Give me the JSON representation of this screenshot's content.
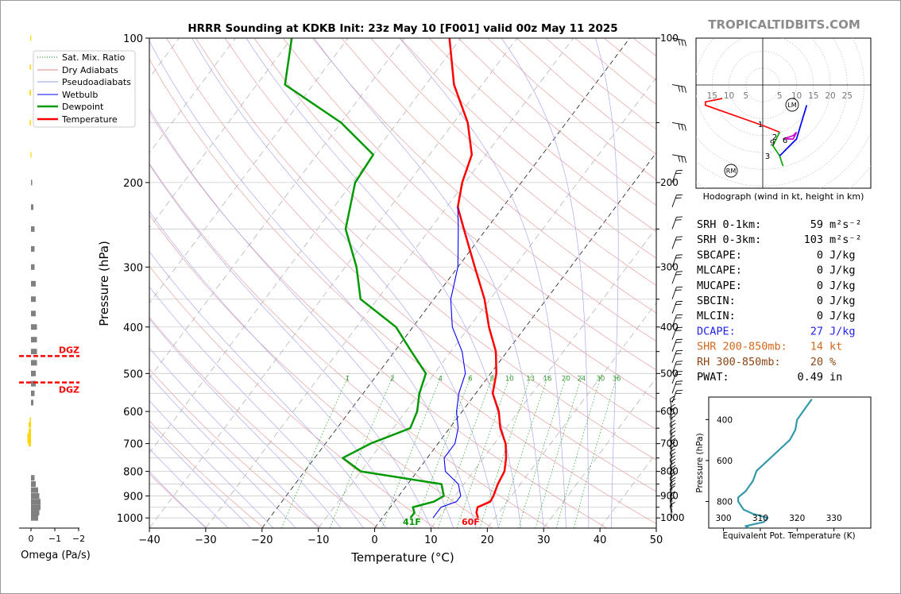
{
  "site": "TROPICALTIDBITS.COM",
  "chart_data": [
    {
      "type": "skew-t",
      "title": "HRRR Sounding at KDKB Init: 23z May 10 [F001] valid 00z May 11 2025",
      "xlabel": "Temperature (°C)",
      "ylabel": "Pressure (hPa)",
      "xlim": [
        -40,
        50
      ],
      "ylim": [
        1050,
        100
      ],
      "x_ticks": [
        "−40",
        "−30",
        "−20",
        "−10",
        "0",
        "10",
        "20",
        "30",
        "40",
        "50"
      ],
      "y_ticks": [
        "100",
        "200",
        "300",
        "400",
        "500",
        "600",
        "700",
        "800",
        "900",
        "1000"
      ],
      "legend": [
        "Sat. Mix. Ratio",
        "Dry Adiabats",
        "Pseudoadiabats",
        "Wetbulb",
        "Dewpoint",
        "Temperature"
      ],
      "legend_placement": "top-left",
      "mixing_ratio_labels": [
        "1",
        "2",
        "4",
        "6",
        "8",
        "10",
        "13",
        "16",
        "20",
        "24",
        "30",
        "36"
      ],
      "surface_labels": {
        "dewpoint": "41F",
        "temperature": "60F"
      },
      "series": [
        {
          "name": "Temperature",
          "color": "#ff0000",
          "points": [
            [
              1000,
              17
            ],
            [
              975,
              16
            ],
            [
              950,
              15.5
            ],
            [
              925,
              17
            ],
            [
              900,
              16.8
            ],
            [
              850,
              16
            ],
            [
              800,
              15.5
            ],
            [
              750,
              14
            ],
            [
              700,
              12
            ],
            [
              650,
              9
            ],
            [
              600,
              6.5
            ],
            [
              550,
              3
            ],
            [
              500,
              1
            ],
            [
              450,
              -2
            ],
            [
              400,
              -6.5
            ],
            [
              350,
              -11
            ],
            [
              300,
              -17
            ],
            [
              250,
              -24
            ],
            [
              225,
              -28
            ],
            [
              200,
              -30.5
            ],
            [
              175,
              -32.5
            ],
            [
              150,
              -37.5
            ],
            [
              125,
              -45
            ],
            [
              100,
              -52
            ]
          ]
        },
        {
          "name": "Dewpoint",
          "color": "#009900",
          "points": [
            [
              1000,
              5
            ],
            [
              975,
              5
            ],
            [
              950,
              4
            ],
            [
              925,
              7
            ],
            [
              900,
              8
            ],
            [
              850,
              6
            ],
            [
              800,
              -10
            ],
            [
              750,
              -15
            ],
            [
              700,
              -12
            ],
            [
              650,
              -7
            ],
            [
              600,
              -8
            ],
            [
              550,
              -10
            ],
            [
              500,
              -11.5
            ],
            [
              450,
              -17
            ],
            [
              400,
              -23
            ],
            [
              350,
              -33
            ],
            [
              300,
              -38
            ],
            [
              250,
              -45
            ],
            [
              200,
              -49.5
            ],
            [
              175,
              -50
            ],
            [
              150,
              -60
            ],
            [
              125,
              -75
            ],
            [
              100,
              -80
            ]
          ]
        },
        {
          "name": "Wetbulb",
          "color": "#0000ff",
          "points": [
            [
              1000,
              9
            ],
            [
              975,
              9
            ],
            [
              950,
              9
            ],
            [
              925,
              11
            ],
            [
              900,
              11
            ],
            [
              850,
              9
            ],
            [
              800,
              5
            ],
            [
              750,
              3
            ],
            [
              700,
              3
            ],
            [
              650,
              1.5
            ],
            [
              600,
              -1
            ],
            [
              550,
              -3
            ],
            [
              500,
              -4.5
            ],
            [
              450,
              -8
            ],
            [
              400,
              -13
            ],
            [
              350,
              -17
            ],
            [
              300,
              -20
            ],
            [
              250,
              -25
            ],
            [
              225,
              -28
            ]
          ]
        }
      ],
      "dgz": {
        "label": "DGZ",
        "pressures_hPa": [
          460,
          522
        ]
      },
      "omega": {
        "xlabel": "Omega (Pa/s)",
        "ticks": [
          "0",
          "−1",
          "−2"
        ],
        "positive_color": "#808080",
        "negative_color": "#ffd700"
      },
      "wind_barbs": "right-side column"
    },
    {
      "type": "hodograph",
      "xlabel": "Hodograph (wind in kt, height in km)",
      "ring_labels": [
        "15",
        "10",
        "5",
        "5",
        "10",
        "15",
        "20",
        "25"
      ],
      "height_labels": [
        "1",
        "2",
        "3",
        "6",
        "9"
      ],
      "storm_motion_labels": [
        "LM",
        "RM"
      ],
      "segments": [
        {
          "range_km": "0-1",
          "color": "#ff0000"
        },
        {
          "range_km": "1-3",
          "color": "#00aa00"
        },
        {
          "range_km": "3-6",
          "color": "#0000ff"
        },
        {
          "range_km": "6-9",
          "color": "#cc00cc"
        }
      ]
    },
    {
      "type": "line",
      "xlabel": "Equivalent Pot. Temperature (K)",
      "ylabel": "Pressure (hPa)",
      "x_ticks": [
        "300",
        "310",
        "320",
        "330"
      ],
      "y_ticks": [
        "400",
        "600",
        "800"
      ],
      "xlim": [
        296,
        340
      ],
      "ylim": [
        930,
        290
      ],
      "color": "#3399aa",
      "series": [
        {
          "points": [
            [
              930,
              307
            ],
            [
              920,
              306
            ],
            [
              900,
              311
            ],
            [
              880,
              312
            ],
            [
              860,
              308
            ],
            [
              840,
              305.5
            ],
            [
              800,
              304
            ],
            [
              780,
              304
            ],
            [
              750,
              306
            ],
            [
              700,
              308
            ],
            [
              650,
              309
            ],
            [
              600,
              312
            ],
            [
              550,
              315
            ],
            [
              500,
              318
            ],
            [
              450,
              319.5
            ],
            [
              400,
              320
            ],
            [
              350,
              322
            ],
            [
              300,
              324
            ]
          ]
        }
      ]
    }
  ],
  "indices": [
    {
      "label": "SRH 0-1km:",
      "value": "59",
      "unit": "m²s⁻²",
      "color": "#000000"
    },
    {
      "label": "SRH 0-3km:",
      "value": "103",
      "unit": "m²s⁻²",
      "color": "#000000"
    },
    {
      "label": "SBCAPE:",
      "value": "0",
      "unit": "J/kg",
      "color": "#000000"
    },
    {
      "label": "MLCAPE:",
      "value": "0",
      "unit": "J/kg",
      "color": "#000000"
    },
    {
      "label": "MUCAPE:",
      "value": "0",
      "unit": "J/kg",
      "color": "#000000"
    },
    {
      "label": "SBCIN:",
      "value": "0",
      "unit": "J/kg",
      "color": "#000000"
    },
    {
      "label": "MLCIN:",
      "value": "0",
      "unit": "J/kg",
      "color": "#000000"
    },
    {
      "label": "DCAPE:",
      "value": "27",
      "unit": "J/kg",
      "color": "#2222ee"
    },
    {
      "label": "SHR 200-850mb:",
      "value": "14",
      "unit": "kt",
      "color": "#d2691e"
    },
    {
      "label": "RH 300-850mb:",
      "value": "20",
      "unit": "%",
      "color": "#8b4513"
    },
    {
      "label": "PWAT:",
      "value": "0.49",
      "unit": "in",
      "color": "#000000"
    }
  ]
}
